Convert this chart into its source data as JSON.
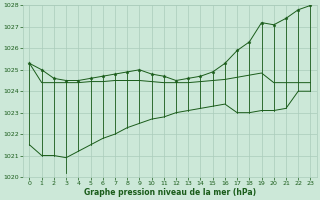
{
  "xlabel": "Graphe pression niveau de la mer (hPa)",
  "ylim": [
    1020,
    1028
  ],
  "xlim": [
    -0.5,
    23.5
  ],
  "yticks": [
    1020,
    1021,
    1022,
    1023,
    1024,
    1025,
    1026,
    1027,
    1028
  ],
  "xticks": [
    0,
    1,
    2,
    3,
    4,
    5,
    6,
    7,
    8,
    9,
    10,
    11,
    12,
    13,
    14,
    15,
    16,
    17,
    18,
    19,
    20,
    21,
    22,
    23
  ],
  "hours": [
    0,
    1,
    2,
    3,
    4,
    5,
    6,
    7,
    8,
    9,
    10,
    11,
    12,
    13,
    14,
    15,
    16,
    17,
    18,
    19,
    20,
    21,
    22,
    23
  ],
  "pressure_max": [
    1025.3,
    1025.0,
    1024.6,
    1024.5,
    1024.5,
    1024.6,
    1024.7,
    1024.8,
    1024.9,
    1025.0,
    1024.8,
    1024.7,
    1024.5,
    1024.6,
    1024.7,
    1024.9,
    1025.3,
    1025.9,
    1026.3,
    1027.2,
    1027.1,
    1027.4,
    1027.8,
    1028.0
  ],
  "pressure_upper_env": [
    1025.3,
    1024.4,
    1024.4,
    1024.4,
    1024.4,
    1024.45,
    1024.45,
    1024.5,
    1024.5,
    1024.5,
    1024.45,
    1024.4,
    1024.4,
    1024.4,
    1024.45,
    1024.5,
    1024.55,
    1024.65,
    1024.75,
    1024.85,
    1024.4,
    1024.4,
    1024.4,
    1024.4
  ],
  "pressure_lower_env": [
    1021.5,
    1021.0,
    1021.0,
    1020.9,
    1021.2,
    1021.5,
    1021.8,
    1022.0,
    1022.3,
    1022.5,
    1022.7,
    1022.8,
    1023.0,
    1023.1,
    1023.2,
    1023.3,
    1023.4,
    1023.0,
    1023.0,
    1023.1,
    1023.1,
    1023.2,
    1024.0,
    1024.0
  ],
  "pressure_min": [
    1021.5,
    1021.0,
    1021.0,
    1020.2,
    1021.2,
    1021.5,
    1021.8,
    1022.0,
    1022.3,
    1022.5,
    1022.7,
    1022.8,
    1023.0,
    1023.1,
    1023.2,
    1023.3,
    1023.4,
    1023.0,
    1023.0,
    1023.1,
    1023.1,
    1023.2,
    1024.0,
    1024.0
  ],
  "line_color": "#1a5c1a",
  "bg_color": "#cce8d8",
  "grid_color": "#aaccbb",
  "font_color": "#1a5c1a"
}
